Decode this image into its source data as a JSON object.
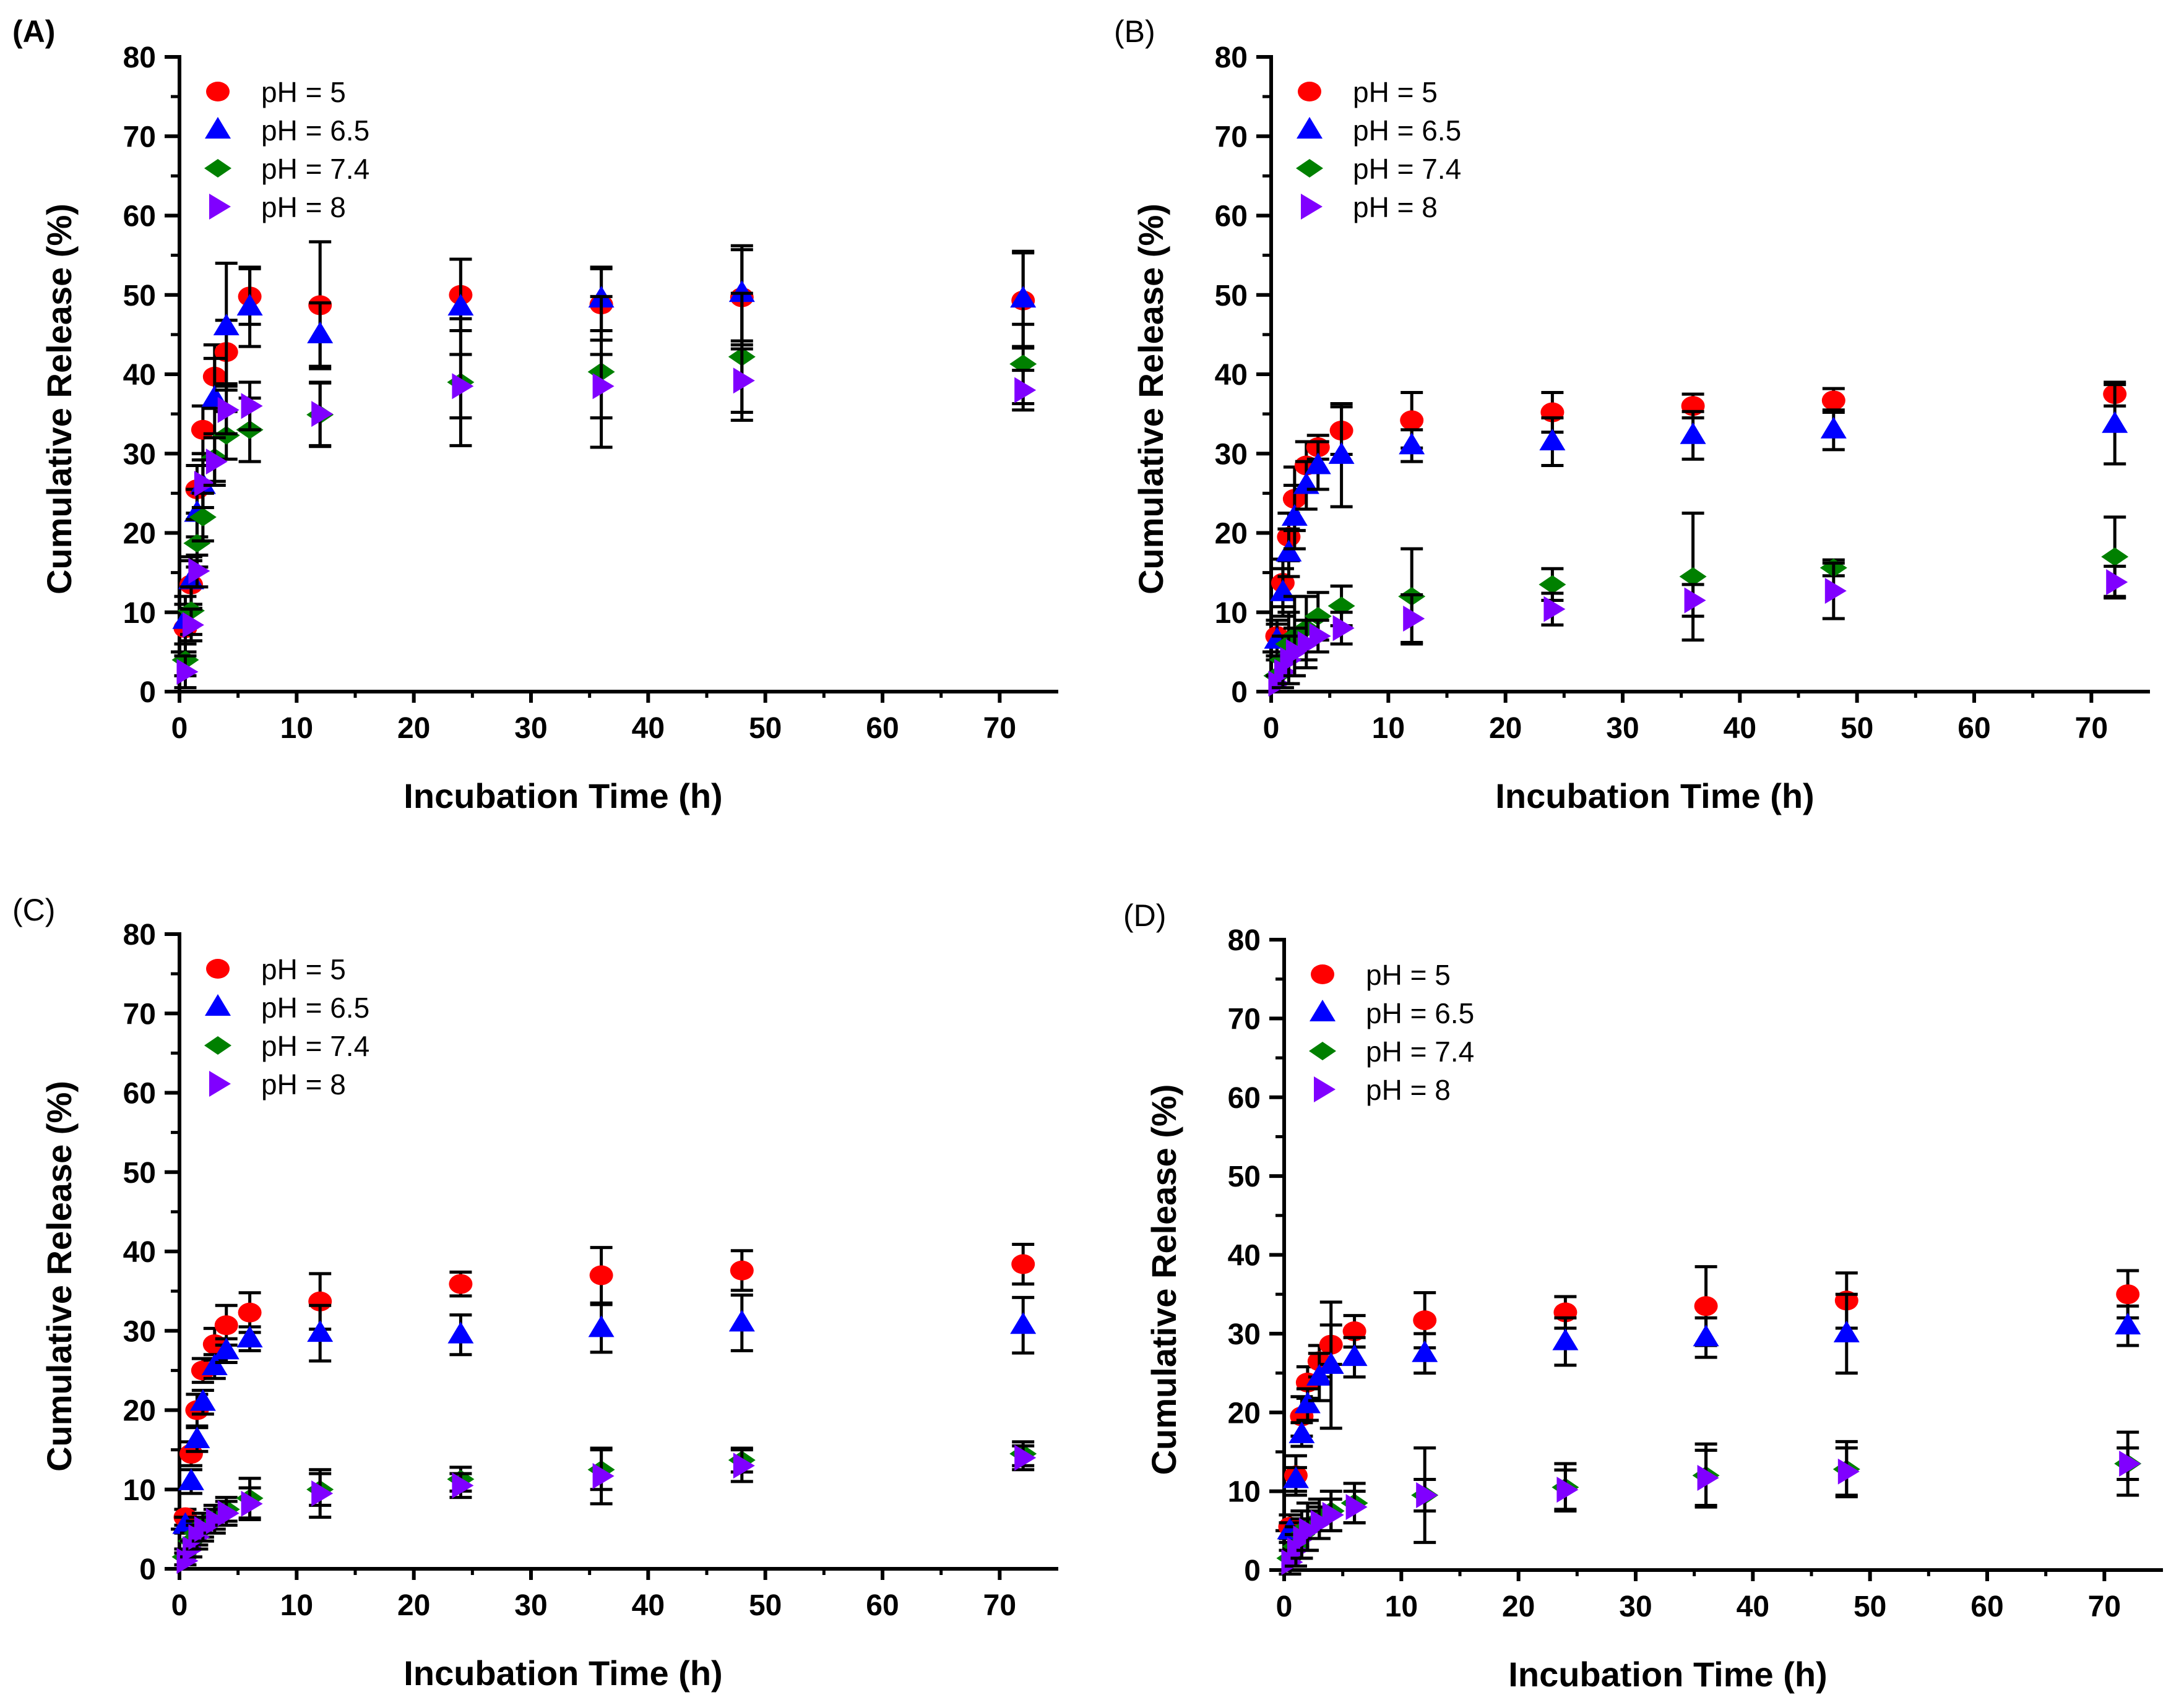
{
  "chart_data": [
    {
      "panel": "(A)",
      "type": "scatter",
      "xlabel": "Incubation Time (h)",
      "ylabel": "Cumulative Release (%)",
      "xlim": [
        0,
        75
      ],
      "ylim": [
        0,
        80
      ],
      "xticks": [
        0,
        10,
        20,
        30,
        40,
        50,
        60,
        70
      ],
      "yticks": [
        0,
        10,
        20,
        30,
        40,
        50,
        60,
        70,
        80
      ],
      "legend": "top-left",
      "x": [
        0.5,
        1,
        1.5,
        2,
        3,
        4,
        6,
        12,
        24,
        36,
        48,
        72
      ],
      "series": [
        {
          "name": "pH = 5",
          "color": "#ff0000",
          "marker": "circle",
          "values": [
            8,
            13.5,
            25.5,
            33,
            39.7,
            42.8,
            49.8,
            48.7,
            50,
            48.8,
            49.7,
            49.3
          ],
          "err": [
            3,
            3,
            3,
            3,
            4,
            4,
            3.5,
            8,
            4.5,
            4.5,
            6,
            6
          ]
        },
        {
          "name": "pH = 6.5",
          "color": "#0000ff",
          "marker": "triangle-up",
          "values": [
            9,
            14,
            22.5,
            26,
            37,
            46,
            48.5,
            45,
            48.5,
            49.5,
            50.2,
            49.5
          ],
          "err": [
            3,
            3,
            3,
            4,
            5,
            8,
            5,
            4,
            6,
            4,
            6,
            6
          ]
        },
        {
          "name": "pH = 7.4",
          "color": "#008000",
          "marker": "diamond",
          "values": [
            4,
            10.2,
            18.7,
            22,
            29.5,
            32.3,
            33,
            34.9,
            39,
            40.3,
            42.2,
            41.3
          ],
          "err": [
            2,
            3,
            3,
            3,
            3,
            3,
            4,
            4,
            8,
            9.5,
            8,
            5
          ]
        },
        {
          "name": "pH = 8",
          "color": "#8000ff",
          "marker": "triangle-right",
          "values": [
            2.5,
            8.4,
            15.2,
            26.2,
            29,
            35.5,
            36,
            35,
            38.5,
            38.5,
            39.2,
            38
          ],
          "err": [
            2,
            2,
            2,
            3,
            3,
            3,
            3,
            4,
            4,
            4,
            4,
            2.5
          ]
        }
      ]
    },
    {
      "panel": "(B)",
      "type": "scatter",
      "xlabel": "Incubation Time (h)",
      "ylabel": "Cumulative Release (%)",
      "xlim": [
        0,
        75
      ],
      "ylim": [
        0,
        80
      ],
      "xticks": [
        0,
        10,
        20,
        30,
        40,
        50,
        60,
        70
      ],
      "yticks": [
        0,
        10,
        20,
        30,
        40,
        50,
        60,
        70,
        80
      ],
      "legend": "top-left",
      "x": [
        0.5,
        1,
        1.5,
        2,
        3,
        4,
        6,
        12,
        24,
        36,
        48,
        72
      ],
      "series": [
        {
          "name": "pH = 5",
          "color": "#ff0000",
          "marker": "circle",
          "values": [
            7,
            13.7,
            19.5,
            24.3,
            28.5,
            30.8,
            32.9,
            34.2,
            35.2,
            36,
            36.7,
            37.5
          ],
          "err": [
            2,
            3,
            3,
            4,
            3,
            1.5,
            3,
            3.5,
            2.5,
            1.5,
            1.5,
            1.5
          ]
        },
        {
          "name": "pH = 6.5",
          "color": "#0000ff",
          "marker": "triangle-up",
          "values": [
            6.5,
            12.5,
            17.5,
            22,
            26,
            28.5,
            29.8,
            31,
            31.5,
            32.3,
            33,
            33.7
          ],
          "err": [
            2,
            3,
            3,
            4,
            3,
            3,
            6.5,
            2,
            3,
            3,
            2.5,
            5
          ]
        },
        {
          "name": "pH = 7.4",
          "color": "#008000",
          "marker": "diamond",
          "values": [
            2,
            4,
            6,
            7,
            8,
            9.5,
            10.8,
            12,
            13.5,
            14.5,
            15.6,
            17
          ],
          "err": [
            2,
            3,
            4,
            5,
            4,
            3,
            2.5,
            6,
            2,
            8,
            1,
            5
          ]
        },
        {
          "name": "pH = 8",
          "color": "#8000ff",
          "marker": "triangle-right",
          "values": [
            1,
            2.5,
            4,
            5,
            6,
            7,
            8,
            9.2,
            10.4,
            11.5,
            12.7,
            13.8
          ],
          "err": [
            1,
            2,
            3,
            3,
            3,
            2,
            2,
            3,
            2,
            2,
            3.5,
            2
          ]
        }
      ]
    },
    {
      "panel": "(C)",
      "type": "scatter",
      "xlabel": "Incubation Time (h)",
      "ylabel": "Cumulative Release (%)",
      "xlim": [
        0,
        75
      ],
      "ylim": [
        0,
        80
      ],
      "xticks": [
        0,
        10,
        20,
        30,
        40,
        50,
        60,
        70
      ],
      "yticks": [
        0,
        10,
        20,
        30,
        40,
        50,
        60,
        70,
        80
      ],
      "legend": "top-left",
      "x": [
        0.5,
        1,
        1.5,
        2,
        3,
        4,
        6,
        12,
        24,
        36,
        48,
        72
      ],
      "series": [
        {
          "name": "pH = 5",
          "color": "#ff0000",
          "marker": "circle",
          "values": [
            6.5,
            14.5,
            20,
            25,
            28.3,
            30.7,
            32.3,
            33.7,
            35.9,
            37,
            37.6,
            38.4
          ],
          "err": [
            1,
            1.5,
            2,
            1.5,
            2,
            2.5,
            2.5,
            3.5,
            1.5,
            3.5,
            2.5,
            2.5
          ]
        },
        {
          "name": "pH = 6.5",
          "color": "#0000ff",
          "marker": "triangle-up",
          "values": [
            5.5,
            11,
            16.3,
            21,
            25.5,
            27.5,
            29,
            29.7,
            29.5,
            30.3,
            31,
            30.7
          ],
          "err": [
            1,
            1.5,
            1.5,
            1.5,
            1.5,
            1.5,
            1.5,
            3.5,
            2.5,
            3,
            3.5,
            3.5
          ]
        },
        {
          "name": "pH = 7.4",
          "color": "#008000",
          "marker": "diamond",
          "values": [
            1.5,
            3.5,
            4.5,
            5.5,
            6.5,
            7.5,
            8.9,
            10,
            11.3,
            12.5,
            13.7,
            14.5
          ],
          "err": [
            1,
            1,
            1.5,
            1.5,
            1.5,
            1.5,
            2.5,
            2,
            1.5,
            2.5,
            1.5,
            1.5
          ]
        },
        {
          "name": "pH = 8",
          "color": "#8000ff",
          "marker": "triangle-right",
          "values": [
            1,
            2.5,
            4,
            5,
            6,
            7,
            8.2,
            9.5,
            10.5,
            11.7,
            13,
            14
          ],
          "err": [
            1,
            1,
            1.5,
            1.5,
            1.5,
            1.5,
            2,
            3,
            1.5,
            3.5,
            2,
            1.5
          ]
        }
      ]
    },
    {
      "panel": "(D)",
      "type": "scatter",
      "xlabel": "Incubation Time (h)",
      "ylabel": "Cumulative Release (%)",
      "xlim": [
        0,
        75
      ],
      "ylim": [
        0,
        80
      ],
      "xticks": [
        0,
        10,
        20,
        30,
        40,
        50,
        60,
        70
      ],
      "yticks": [
        0,
        10,
        20,
        30,
        40,
        50,
        60,
        70,
        80
      ],
      "legend": "top-left",
      "x": [
        0.5,
        1,
        1.5,
        2,
        3,
        4,
        6,
        12,
        24,
        36,
        48,
        72
      ],
      "series": [
        {
          "name": "pH = 5",
          "color": "#ff0000",
          "marker": "circle",
          "values": [
            5.5,
            12,
            19.5,
            23.8,
            26.5,
            28.6,
            30.3,
            31.7,
            32.7,
            33.5,
            34.2,
            35
          ],
          "err": [
            1.5,
            2.5,
            2.5,
            2,
            2,
            2.5,
            2,
            3.5,
            2,
            5,
            3.5,
            3
          ]
        },
        {
          "name": "pH = 6.5",
          "color": "#0000ff",
          "marker": "triangle-up",
          "values": [
            5,
            11.5,
            17.2,
            21,
            24.5,
            26,
            27,
            27.5,
            29,
            29.5,
            30,
            31
          ],
          "err": [
            1,
            1.5,
            1.5,
            2,
            3,
            8,
            2.5,
            2.5,
            3,
            2.5,
            5,
            2.5
          ]
        },
        {
          "name": "pH = 7.4",
          "color": "#008000",
          "marker": "diamond",
          "values": [
            1.5,
            3,
            4.5,
            5.5,
            6.5,
            7.5,
            8.5,
            9.5,
            10.5,
            12,
            12.8,
            13.5
          ],
          "err": [
            2,
            2.5,
            3,
            3,
            2.5,
            2.5,
            2.5,
            6,
            3,
            4,
            3.5,
            4
          ]
        },
        {
          "name": "pH = 8",
          "color": "#8000ff",
          "marker": "triangle-right",
          "values": [
            1,
            2.5,
            4,
            5,
            6,
            7,
            8,
            9.5,
            10.2,
            11.7,
            12.5,
            13.5
          ],
          "err": [
            1.5,
            2,
            2.5,
            2.5,
            2,
            2,
            2,
            2,
            2.5,
            3.5,
            3,
            2
          ]
        }
      ]
    }
  ]
}
